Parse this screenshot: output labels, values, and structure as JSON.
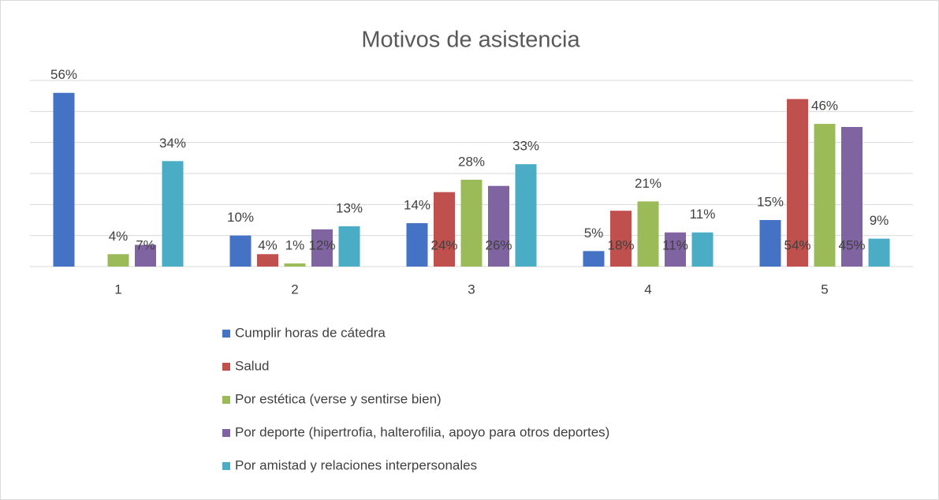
{
  "chart_data": {
    "type": "bar",
    "title": "Motivos de asistencia",
    "categories": [
      "1",
      "2",
      "3",
      "4",
      "5"
    ],
    "series": [
      {
        "name": "Cumplir horas de cátedra",
        "color": "#4472c4",
        "values": [
          56,
          10,
          14,
          5,
          15
        ],
        "value_labels": [
          "56%",
          "10%",
          "14%",
          "5%",
          "15%"
        ],
        "label_position": "outside_end"
      },
      {
        "name": "Salud",
        "color": "#c0504d",
        "values": [
          null,
          4,
          24,
          18,
          54
        ],
        "value_labels": [
          null,
          "4%",
          "24%",
          "18%",
          "54%"
        ],
        "label_position": "inside_base"
      },
      {
        "name": "Por estética (verse y sentirse bien)",
        "color": "#9bbb59",
        "values": [
          4,
          1,
          28,
          21,
          46
        ],
        "value_labels": [
          "4%",
          "1%",
          "28%",
          "21%",
          "46%"
        ],
        "label_position": "outside_end"
      },
      {
        "name": "Por deporte (hipertrofia, halterofilia, apoyo para otros deportes)",
        "color": "#8064a2",
        "values": [
          7,
          12,
          26,
          11,
          45
        ],
        "value_labels": [
          "7%",
          "12%",
          "26%",
          "11%",
          "45%"
        ],
        "label_position": "inside_base"
      },
      {
        "name": "Por amistad y relaciones interpersonales",
        "color": "#4bacc6",
        "values": [
          34,
          13,
          33,
          11,
          9
        ],
        "value_labels": [
          "34%",
          "13%",
          "33%",
          "11%",
          "9%"
        ],
        "label_position": "outside_end"
      }
    ],
    "ylim": [
      0,
      60
    ],
    "yticks": [
      0,
      10,
      20,
      30,
      40,
      50,
      60
    ],
    "grid": true,
    "legend": "bottom"
  }
}
